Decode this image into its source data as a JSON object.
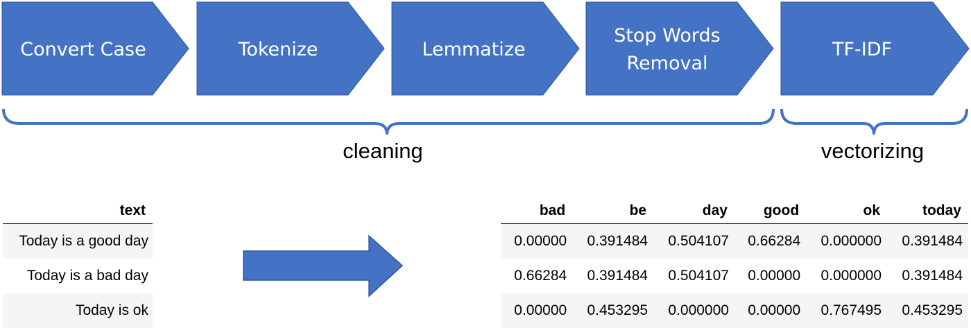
{
  "pipeline": {
    "steps": [
      {
        "label_lines": [
          "Convert Case"
        ]
      },
      {
        "label_lines": [
          "Tokenize"
        ]
      },
      {
        "label_lines": [
          "Lemmatize"
        ]
      },
      {
        "label_lines": [
          "Stop Words",
          "Removal"
        ]
      },
      {
        "label_lines": [
          "TF-IDF"
        ]
      }
    ],
    "groups": [
      {
        "label": "cleaning"
      },
      {
        "label": "vectorizing"
      }
    ],
    "colors": {
      "step_fill": "#4472c4",
      "bracket": "#4472c4",
      "arrow_fill": "#4472c4",
      "arrow_stroke": "#2f5597"
    }
  },
  "input_table": {
    "header": "text",
    "rows": [
      "Today is a good day",
      "Today is a bad day",
      "Today is ok"
    ]
  },
  "output_table": {
    "columns": [
      "bad",
      "be",
      "day",
      "good",
      "ok",
      "today"
    ],
    "rows": [
      [
        "0.00000",
        "0.391484",
        "0.504107",
        "0.66284",
        "0.000000",
        "0.391484"
      ],
      [
        "0.66284",
        "0.391484",
        "0.504107",
        "0.00000",
        "0.000000",
        "0.391484"
      ],
      [
        "0.00000",
        "0.453295",
        "0.000000",
        "0.00000",
        "0.767495",
        "0.453295"
      ]
    ]
  }
}
